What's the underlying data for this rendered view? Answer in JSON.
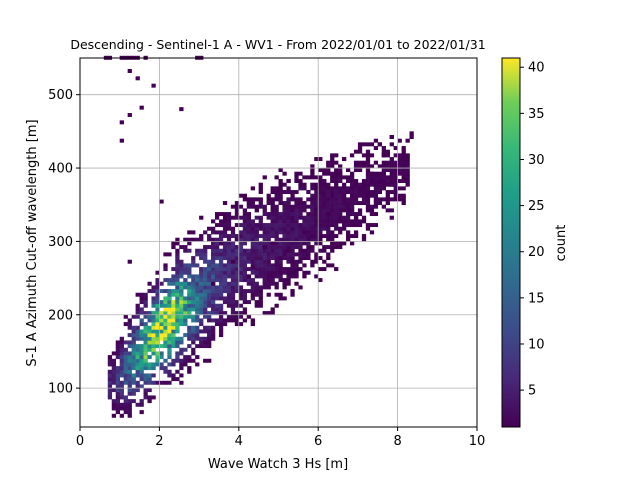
{
  "chart_data": {
    "type": "heatmap",
    "title": "Descending - Sentinel-1 A - WV1 - From 2022/01/01 to 2022/01/31",
    "xlabel": "Wave Watch 3 Hs [m]",
    "ylabel": "S-1 A Azimuth Cut-off wavelength [m]",
    "xlim": [
      0,
      10
    ],
    "ylim": [
      47,
      550
    ],
    "xticks": [
      "0",
      "2",
      "4",
      "6",
      "8",
      "10"
    ],
    "xtick_values": [
      0,
      2,
      4,
      6,
      8,
      10
    ],
    "yticks": [
      "100",
      "200",
      "300",
      "400",
      "500"
    ],
    "ytick_values": [
      100,
      200,
      300,
      400,
      500
    ],
    "grid": true,
    "colormap": "viridis",
    "colorbar": {
      "label": "count",
      "ticks": [
        "5",
        "10",
        "15",
        "20",
        "25",
        "30",
        "35",
        "40"
      ],
      "tick_values": [
        5,
        10,
        15,
        20,
        25,
        30,
        35,
        40
      ],
      "range": [
        1,
        41
      ]
    },
    "bin_size": {
      "x": 0.1,
      "y": 5
    },
    "ridge": [
      {
        "hs": 0.8,
        "center": 105,
        "spread": 22,
        "peak": 5
      },
      {
        "hs": 1.2,
        "center": 128,
        "spread": 30,
        "peak": 14
      },
      {
        "hs": 1.6,
        "center": 152,
        "spread": 32,
        "peak": 26
      },
      {
        "hs": 1.9,
        "center": 172,
        "spread": 32,
        "peak": 38
      },
      {
        "hs": 2.2,
        "center": 190,
        "spread": 34,
        "peak": 34
      },
      {
        "hs": 2.6,
        "center": 210,
        "spread": 35,
        "peak": 24
      },
      {
        "hs": 3.0,
        "center": 228,
        "spread": 38,
        "peak": 13
      },
      {
        "hs": 3.6,
        "center": 255,
        "spread": 42,
        "peak": 6
      },
      {
        "hs": 4.3,
        "center": 280,
        "spread": 45,
        "peak": 4
      },
      {
        "hs": 5.0,
        "center": 302,
        "spread": 45,
        "peak": 3
      },
      {
        "hs": 6.0,
        "center": 330,
        "spread": 45,
        "peak": 2
      },
      {
        "hs": 7.0,
        "center": 362,
        "spread": 40,
        "peak": 1.5
      },
      {
        "hs": 8.2,
        "center": 400,
        "spread": 30,
        "peak": 1.2
      }
    ],
    "outliers": [
      [
        0.6,
        548
      ],
      [
        0.7,
        548
      ],
      [
        1.0,
        548
      ],
      [
        1.1,
        548
      ],
      [
        1.2,
        548
      ],
      [
        1.3,
        548
      ],
      [
        1.4,
        548
      ],
      [
        1.6,
        548
      ],
      [
        2.9,
        548
      ],
      [
        3.0,
        548
      ],
      [
        1.2,
        530
      ],
      [
        1.4,
        520
      ],
      [
        1.8,
        510
      ],
      [
        1.5,
        480
      ],
      [
        2.5,
        478
      ],
      [
        1.0,
        460
      ],
      [
        1.2,
        470
      ],
      [
        1.0,
        435
      ],
      [
        2.0,
        352
      ],
      [
        1.2,
        270
      ],
      [
        7.5,
        430
      ],
      [
        7.6,
        415
      ],
      [
        7.7,
        420
      ],
      [
        7.9,
        400
      ],
      [
        8.1,
        400
      ],
      [
        8.3,
        440
      ],
      [
        8.3,
        445
      ],
      [
        8.0,
        435
      ],
      [
        7.8,
        440
      ],
      [
        7.2,
        415
      ],
      [
        7.3,
        390
      ],
      [
        7.0,
        400
      ],
      [
        6.6,
        410
      ],
      [
        6.5,
        390
      ],
      [
        7.3,
        380
      ],
      [
        7.5,
        375
      ],
      [
        7.8,
        375
      ],
      [
        5.0,
        395
      ],
      [
        5.2,
        380
      ],
      [
        6.1,
        395
      ],
      [
        6.2,
        400
      ],
      [
        7.4,
        355
      ],
      [
        6.7,
        365
      ],
      [
        6.9,
        330
      ],
      [
        6.2,
        335
      ],
      [
        6.0,
        300
      ],
      [
        5.6,
        310
      ],
      [
        5.2,
        285
      ],
      [
        4.8,
        295
      ],
      [
        4.6,
        290
      ],
      [
        3.9,
        300
      ],
      [
        3.5,
        295
      ],
      [
        4.3,
        262
      ],
      [
        5.0,
        275
      ],
      [
        4.2,
        250
      ],
      [
        3.8,
        270
      ],
      [
        3.3,
        240
      ],
      [
        5.8,
        305
      ],
      [
        6.5,
        325
      ]
    ]
  }
}
